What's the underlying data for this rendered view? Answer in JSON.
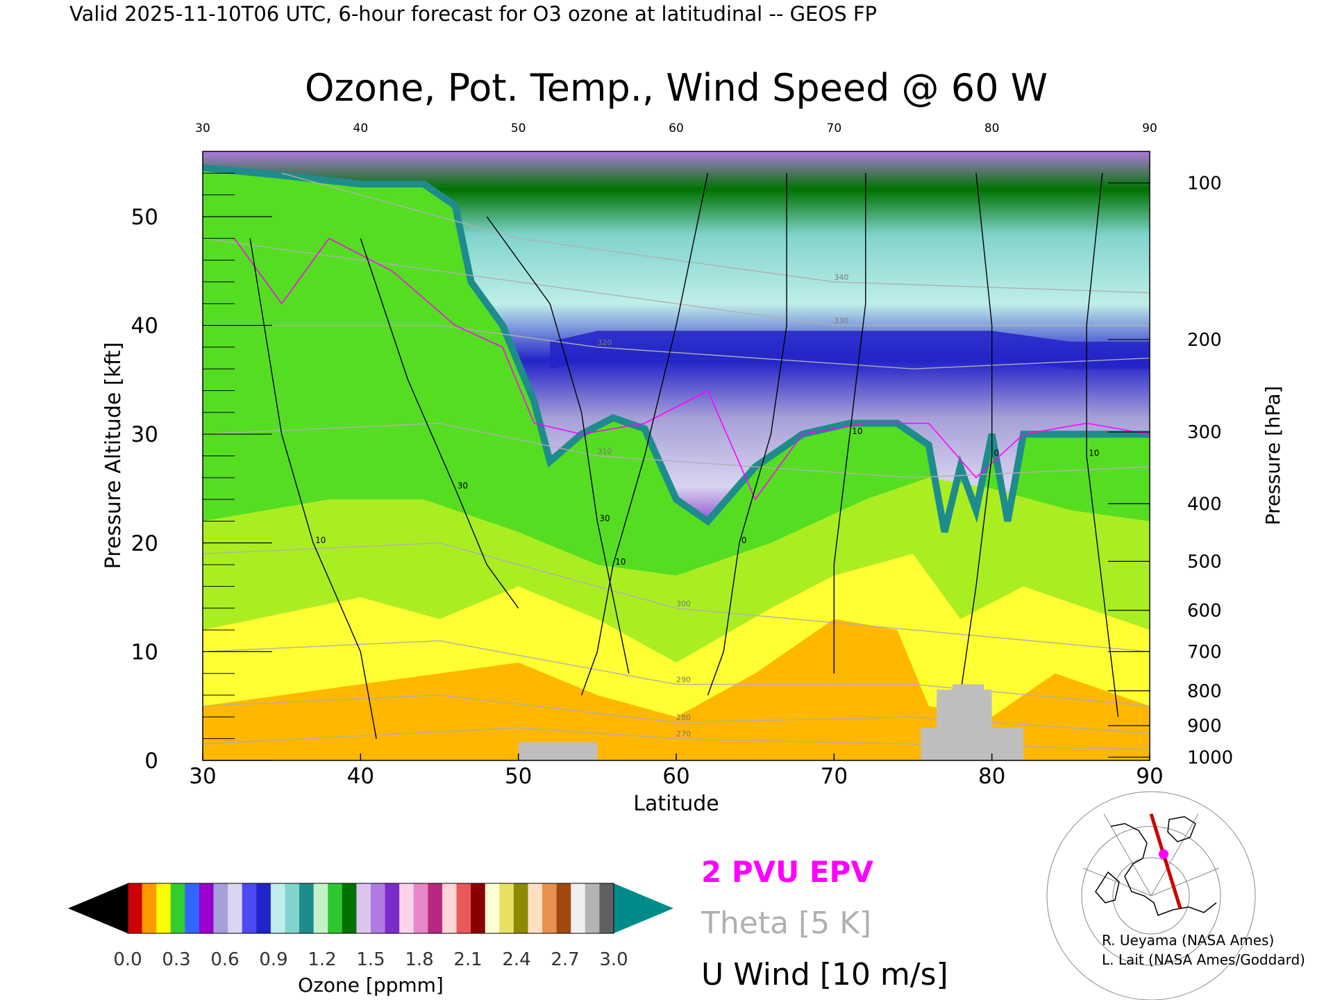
{
  "header": {
    "valid_line": "Valid 2025-11-10T06 UTC, 6-hour forecast for O3 ozone at latitudinal -- GEOS FP"
  },
  "chart_data": {
    "type": "heatmap",
    "title": "Ozone, Pot. Temp., Wind Speed @ 60 W",
    "xlabel": "Latitude",
    "ylabel_left": "Pressure Altitude [kft]",
    "ylabel_right": "Pressure [hPa]",
    "xlim": [
      30,
      90
    ],
    "ylim": [
      0,
      56
    ],
    "x_ticks": [
      30,
      40,
      50,
      60,
      70,
      80,
      90
    ],
    "x_tick_labels": [
      "30",
      "40",
      "50",
      "60",
      "70",
      "80",
      "90"
    ],
    "y_ticks": [
      0,
      10,
      20,
      30,
      40,
      50
    ],
    "y_tick_labels": [
      "0",
      "10",
      "20",
      "30",
      "40",
      "50"
    ],
    "pressure_ticks": [
      {
        "hpa": "100",
        "kft": 53.1
      },
      {
        "hpa": "200",
        "kft": 38.7
      },
      {
        "hpa": "300",
        "kft": 30.2
      },
      {
        "hpa": "400",
        "kft": 23.6
      },
      {
        "hpa": "500",
        "kft": 18.3
      },
      {
        "hpa": "600",
        "kft": 13.8
      },
      {
        "hpa": "700",
        "kft": 10.0
      },
      {
        "hpa": "800",
        "kft": 6.4
      },
      {
        "hpa": "900",
        "kft": 3.2
      },
      {
        "hpa": "1000",
        "kft": 0.3
      }
    ],
    "tropopause_kft": [
      [
        30,
        54.5
      ],
      [
        35,
        53.8
      ],
      [
        40,
        53
      ],
      [
        44,
        53
      ],
      [
        46,
        51
      ],
      [
        47,
        44
      ],
      [
        49,
        40
      ],
      [
        51,
        33
      ],
      [
        52,
        27.5
      ],
      [
        54,
        30
      ],
      [
        56,
        31.5
      ],
      [
        58,
        30.5
      ],
      [
        60,
        24
      ],
      [
        62,
        22
      ],
      [
        65,
        27
      ],
      [
        68,
        30
      ],
      [
        71,
        31
      ],
      [
        74,
        31
      ],
      [
        76,
        29
      ],
      [
        77,
        21
      ],
      [
        78,
        27
      ],
      [
        79,
        23
      ],
      [
        80,
        30
      ],
      [
        81,
        22
      ],
      [
        82,
        30
      ],
      [
        86,
        30
      ],
      [
        90,
        30
      ]
    ],
    "bands_kft": [
      {
        "name": "lower",
        "points": [
          [
            30,
            5
          ],
          [
            40,
            7
          ],
          [
            50,
            9
          ],
          [
            55,
            6
          ],
          [
            60,
            4
          ],
          [
            65,
            8
          ],
          [
            70,
            13
          ],
          [
            74,
            12
          ],
          [
            76,
            5
          ],
          [
            80,
            4
          ],
          [
            84,
            8
          ],
          [
            88,
            6
          ],
          [
            90,
            5
          ]
        ]
      },
      {
        "name": "mid",
        "points": [
          [
            30,
            12
          ],
          [
            40,
            15
          ],
          [
            45,
            13
          ],
          [
            50,
            16
          ],
          [
            55,
            13
          ],
          [
            60,
            9
          ],
          [
            66,
            14
          ],
          [
            70,
            17
          ],
          [
            75,
            19
          ],
          [
            78,
            13
          ],
          [
            82,
            16
          ],
          [
            86,
            14
          ],
          [
            90,
            12
          ]
        ]
      },
      {
        "name": "upper",
        "points": [
          [
            30,
            22
          ],
          [
            38,
            24
          ],
          [
            44,
            24
          ],
          [
            50,
            21
          ],
          [
            55,
            18
          ],
          [
            60,
            17
          ],
          [
            66,
            20
          ],
          [
            72,
            24
          ],
          [
            76,
            26
          ],
          [
            80,
            25
          ],
          [
            85,
            23
          ],
          [
            90,
            22
          ]
        ]
      }
    ],
    "stratosphere_kft": {
      "lower": [
        [
          52,
          36
        ],
        [
          55,
          37
        ],
        [
          60,
          37
        ],
        [
          65,
          37
        ],
        [
          70,
          37
        ],
        [
          75,
          37
        ],
        [
          80,
          37
        ],
        [
          85,
          36
        ],
        [
          90,
          36
        ]
      ],
      "upper": [
        [
          48,
          47
        ],
        [
          55,
          47
        ],
        [
          60,
          47
        ],
        [
          65,
          47
        ],
        [
          70,
          48
        ],
        [
          75,
          48
        ],
        [
          80,
          47
        ],
        [
          85,
          47
        ],
        [
          90,
          47
        ]
      ]
    },
    "epv_2pvu_kft": [
      [
        32,
        48
      ],
      [
        35,
        42
      ],
      [
        38,
        48
      ],
      [
        42,
        45
      ],
      [
        46,
        40
      ],
      [
        49,
        38
      ],
      [
        51,
        31
      ],
      [
        54,
        30
      ],
      [
        58,
        31
      ],
      [
        62,
        34
      ],
      [
        65,
        24
      ],
      [
        68,
        30
      ],
      [
        72,
        31
      ],
      [
        76,
        31
      ],
      [
        79,
        26
      ],
      [
        82,
        30
      ],
      [
        86,
        31
      ],
      [
        90,
        30
      ]
    ],
    "theta_contours_kft": [
      {
        "label": "270",
        "points": [
          [
            30,
            1.5
          ],
          [
            50,
            3
          ],
          [
            60,
            2
          ],
          [
            90,
            1
          ]
        ]
      },
      {
        "label": "280",
        "points": [
          [
            30,
            5
          ],
          [
            45,
            6
          ],
          [
            60,
            3.5
          ],
          [
            75,
            4
          ],
          [
            90,
            2.5
          ]
        ]
      },
      {
        "label": "290",
        "points": [
          [
            30,
            10
          ],
          [
            45,
            11
          ],
          [
            60,
            7
          ],
          [
            75,
            7
          ],
          [
            90,
            5
          ]
        ]
      },
      {
        "label": "300",
        "points": [
          [
            30,
            19
          ],
          [
            45,
            20
          ],
          [
            60,
            14
          ],
          [
            75,
            12
          ],
          [
            90,
            10
          ]
        ]
      },
      {
        "label": "310",
        "points": [
          [
            30,
            30
          ],
          [
            45,
            31
          ],
          [
            55,
            28
          ],
          [
            75,
            26
          ],
          [
            90,
            27
          ]
        ]
      },
      {
        "label": "320",
        "points": [
          [
            30,
            40
          ],
          [
            45,
            40
          ],
          [
            55,
            38
          ],
          [
            75,
            36
          ],
          [
            90,
            37
          ]
        ]
      },
      {
        "label": "330",
        "points": [
          [
            30,
            48
          ],
          [
            50,
            44
          ],
          [
            70,
            40
          ],
          [
            90,
            40
          ]
        ]
      },
      {
        "label": "340",
        "points": [
          [
            35,
            54
          ],
          [
            50,
            48
          ],
          [
            70,
            44
          ],
          [
            90,
            43
          ]
        ]
      }
    ],
    "u_wind_contours_kft": [
      {
        "label": "10",
        "points": [
          [
            33,
            48
          ],
          [
            35,
            30
          ],
          [
            37,
            20
          ],
          [
            40,
            10
          ],
          [
            41,
            2
          ]
        ]
      },
      {
        "label": "30",
        "points": [
          [
            40,
            48
          ],
          [
            43,
            35
          ],
          [
            46,
            25
          ],
          [
            48,
            18
          ],
          [
            50,
            14
          ]
        ]
      },
      {
        "label": "30",
        "points": [
          [
            48,
            50
          ],
          [
            52,
            42
          ],
          [
            54,
            32
          ],
          [
            55,
            22
          ],
          [
            56,
            15
          ],
          [
            57,
            8
          ]
        ]
      },
      {
        "label": "10",
        "points": [
          [
            62,
            54
          ],
          [
            60,
            40
          ],
          [
            58,
            28
          ],
          [
            56,
            18
          ],
          [
            55,
            10
          ],
          [
            54,
            6
          ]
        ]
      },
      {
        "label": "0",
        "points": [
          [
            67,
            54
          ],
          [
            67,
            40
          ],
          [
            66,
            30
          ],
          [
            64,
            20
          ],
          [
            63,
            10
          ],
          [
            62,
            6
          ]
        ]
      },
      {
        "label": "10",
        "points": [
          [
            72,
            54
          ],
          [
            72,
            42
          ],
          [
            71,
            30
          ],
          [
            70,
            18
          ],
          [
            70,
            8
          ]
        ]
      },
      {
        "label": "0",
        "points": [
          [
            79,
            54
          ],
          [
            80,
            40
          ],
          [
            80,
            28
          ],
          [
            79,
            16
          ],
          [
            78,
            6
          ]
        ]
      },
      {
        "label": "10",
        "points": [
          [
            87,
            54
          ],
          [
            86,
            40
          ],
          [
            86,
            28
          ],
          [
            87,
            16
          ],
          [
            88,
            4
          ]
        ]
      }
    ],
    "terrain_blocks": [
      {
        "x": [
          50,
          55
        ],
        "kft": 1.7
      },
      {
        "x": [
          75.5,
          82
        ],
        "kft": 3
      },
      {
        "x": [
          76.5,
          80
        ],
        "kft": 6.5
      },
      {
        "x": [
          77.5,
          79.5
        ],
        "kft": 7
      }
    ]
  },
  "colorbar": {
    "label": "Ozone [ppmm]",
    "ticks": [
      "0.0",
      "0.3",
      "0.6",
      "0.9",
      "1.2",
      "1.5",
      "1.8",
      "2.1",
      "2.4",
      "2.7",
      "3.0"
    ],
    "under_color": "#000000",
    "over_color": "#008b8b",
    "segments": [
      "#cc0000",
      "#ff9900",
      "#ffff00",
      "#33cc33",
      "#3366ff",
      "#9900cc",
      "#a6a0d8",
      "#d9d4f0",
      "#4a4af0",
      "#2323c8",
      "#bfeee9",
      "#80d4cc",
      "#1e8c8c",
      "#c6f0c6",
      "#2ec82e",
      "#007200",
      "#dcc4f0",
      "#b07ae0",
      "#7b2cc8",
      "#fbd4ec",
      "#e886c8",
      "#b8287e",
      "#ffd6d6",
      "#ea5858",
      "#8a0000",
      "#ffffd4",
      "#e8e060",
      "#8e8a00",
      "#ffe0c4",
      "#e89050",
      "#a04810",
      "#f0f0f0",
      "#b4b4b4",
      "#606060"
    ]
  },
  "legend": {
    "epv": "2 PVU EPV",
    "theta": "Theta [5 K]",
    "wind": "U Wind [10 m/s]",
    "epv_color": "#ff00ff",
    "theta_color": "#b0b0b0",
    "wind_color": "#000000"
  },
  "credits": {
    "line1": "R. Ueyama (NASA Ames)",
    "line2": "L. Lait (NASA Ames/Goddard)"
  },
  "colors": {
    "surface_lower": "#ffb700",
    "lower_trop": "#ffdd44",
    "mid_trop": "#ffff33",
    "upper_trop": "#aaee22",
    "upper_trop2": "#55dd22",
    "tropopause": "#1e8c8c",
    "strat_low": "#d9d4f0",
    "strat_mid": "#2323c8",
    "strat_high": "#bfeee9",
    "strat_top": "#2ec82e",
    "terrain": "#bebebe"
  }
}
